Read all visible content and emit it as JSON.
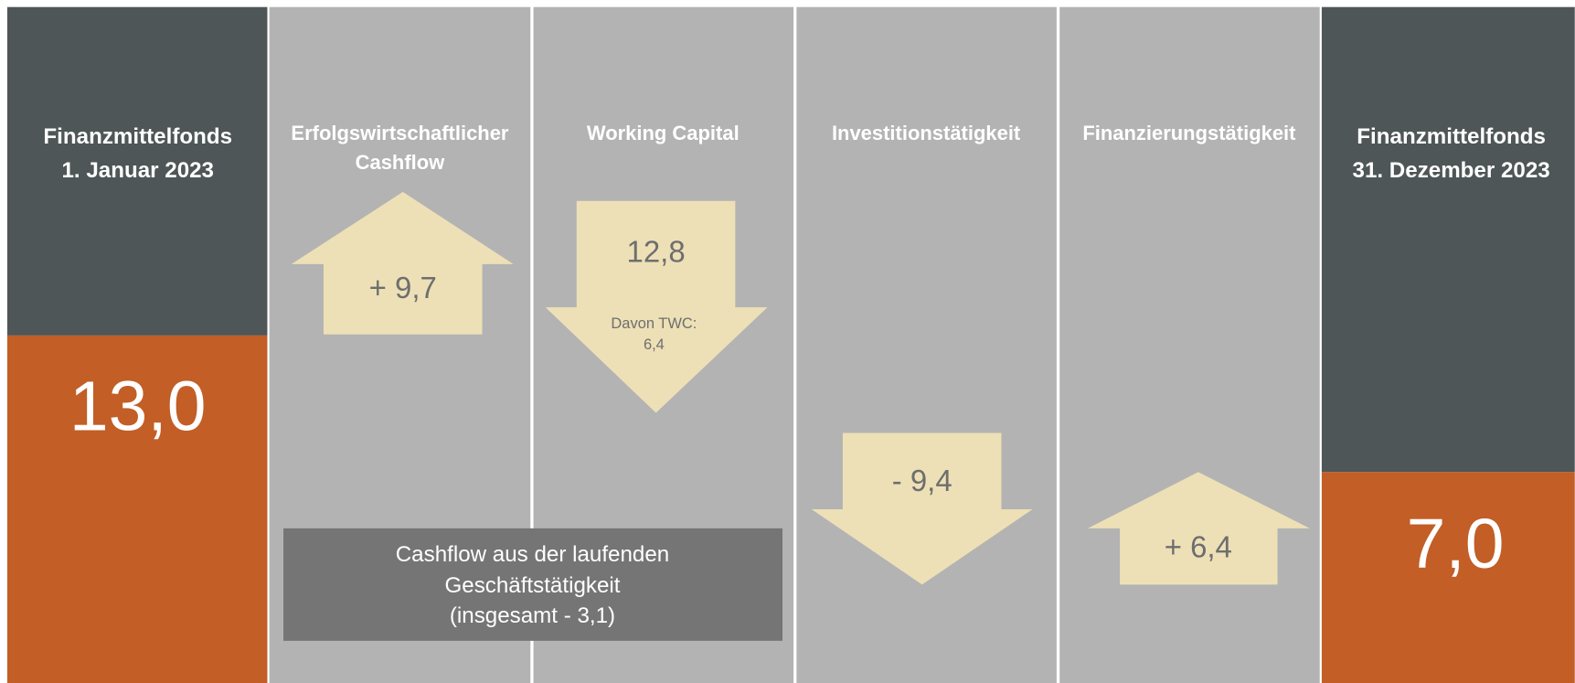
{
  "columns": [
    {
      "title": [
        "Finanzmittelfonds",
        "1. Januar 2023"
      ],
      "value": "13,0"
    },
    {
      "title": [
        "Erfolgswirtschaftlicher",
        "Cashflow"
      ],
      "value": "+ 9,7"
    },
    {
      "title": [
        "Working Capital"
      ],
      "value": "12,8",
      "note": [
        "Davon TWC:",
        "6,4"
      ]
    },
    {
      "title": [
        "Investitionstätigkeit"
      ],
      "value": "- 9,4"
    },
    {
      "title": [
        "Finanzierungstätigkeit"
      ],
      "value": "+ 6,4"
    },
    {
      "title": [
        "Finanzmittelfonds",
        "31. Dezember 2023"
      ],
      "value": "7,0"
    }
  ],
  "summary": [
    "Cashflow aus der laufenden",
    "Geschäftstätigkeit",
    "(insgesamt - 3,1)"
  ]
}
